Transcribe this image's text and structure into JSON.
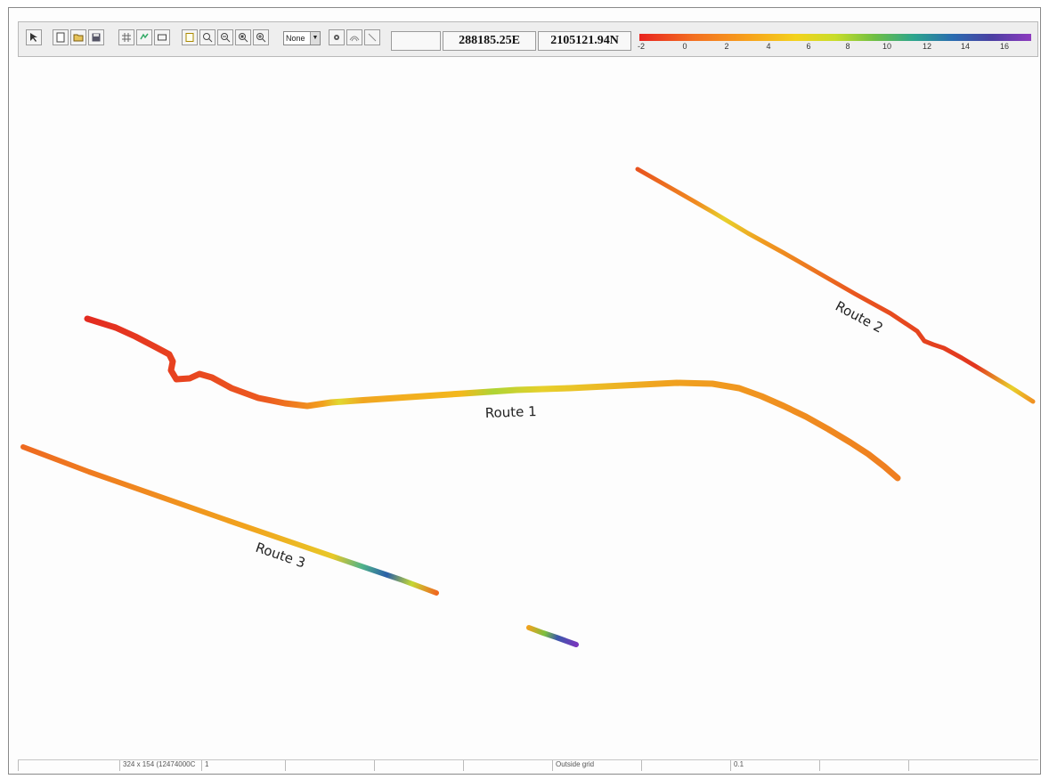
{
  "toolbar": {
    "buttons": [
      {
        "icon": "pointer-tool-icon"
      },
      {
        "icon": "new-file-icon"
      },
      {
        "icon": "open-folder-icon"
      },
      {
        "icon": "save-icon"
      },
      {
        "icon": "grid-icon"
      },
      {
        "icon": "layers-icon"
      },
      {
        "icon": "rectangle-select-icon"
      },
      {
        "icon": "properties-icon"
      },
      {
        "icon": "zoom-icon"
      },
      {
        "icon": "zoom-out-icon"
      },
      {
        "icon": "zoom-extent-icon"
      },
      {
        "icon": "zoom-in-icon"
      },
      {
        "icon": "settings-icon"
      },
      {
        "icon": "contour-icon"
      },
      {
        "icon": "line-icon"
      }
    ],
    "combo_value": "None",
    "easting": "288185.25E",
    "northing": "2105121.94N",
    "colorbar_ticks": [
      "-2",
      "0",
      "2",
      "4",
      "6",
      "8",
      "10",
      "12",
      "14",
      "16"
    ],
    "colorbar_colors": [
      "#e8231f",
      "#f37021",
      "#f7a21b",
      "#f3d21c",
      "#c8dd2a",
      "#6fbf44",
      "#2ca58d",
      "#2a6cb0",
      "#4b3fa2",
      "#8e3bbf"
    ]
  },
  "map": {
    "labels": {
      "route1": "Route 1",
      "route2": "Route 2",
      "route3": "Route 3"
    }
  },
  "status": {
    "cells": [
      "",
      "324 x 154 (12474000C",
      "1",
      "",
      "",
      "",
      "Outside grid",
      "",
      "0.1",
      "",
      ""
    ]
  }
}
